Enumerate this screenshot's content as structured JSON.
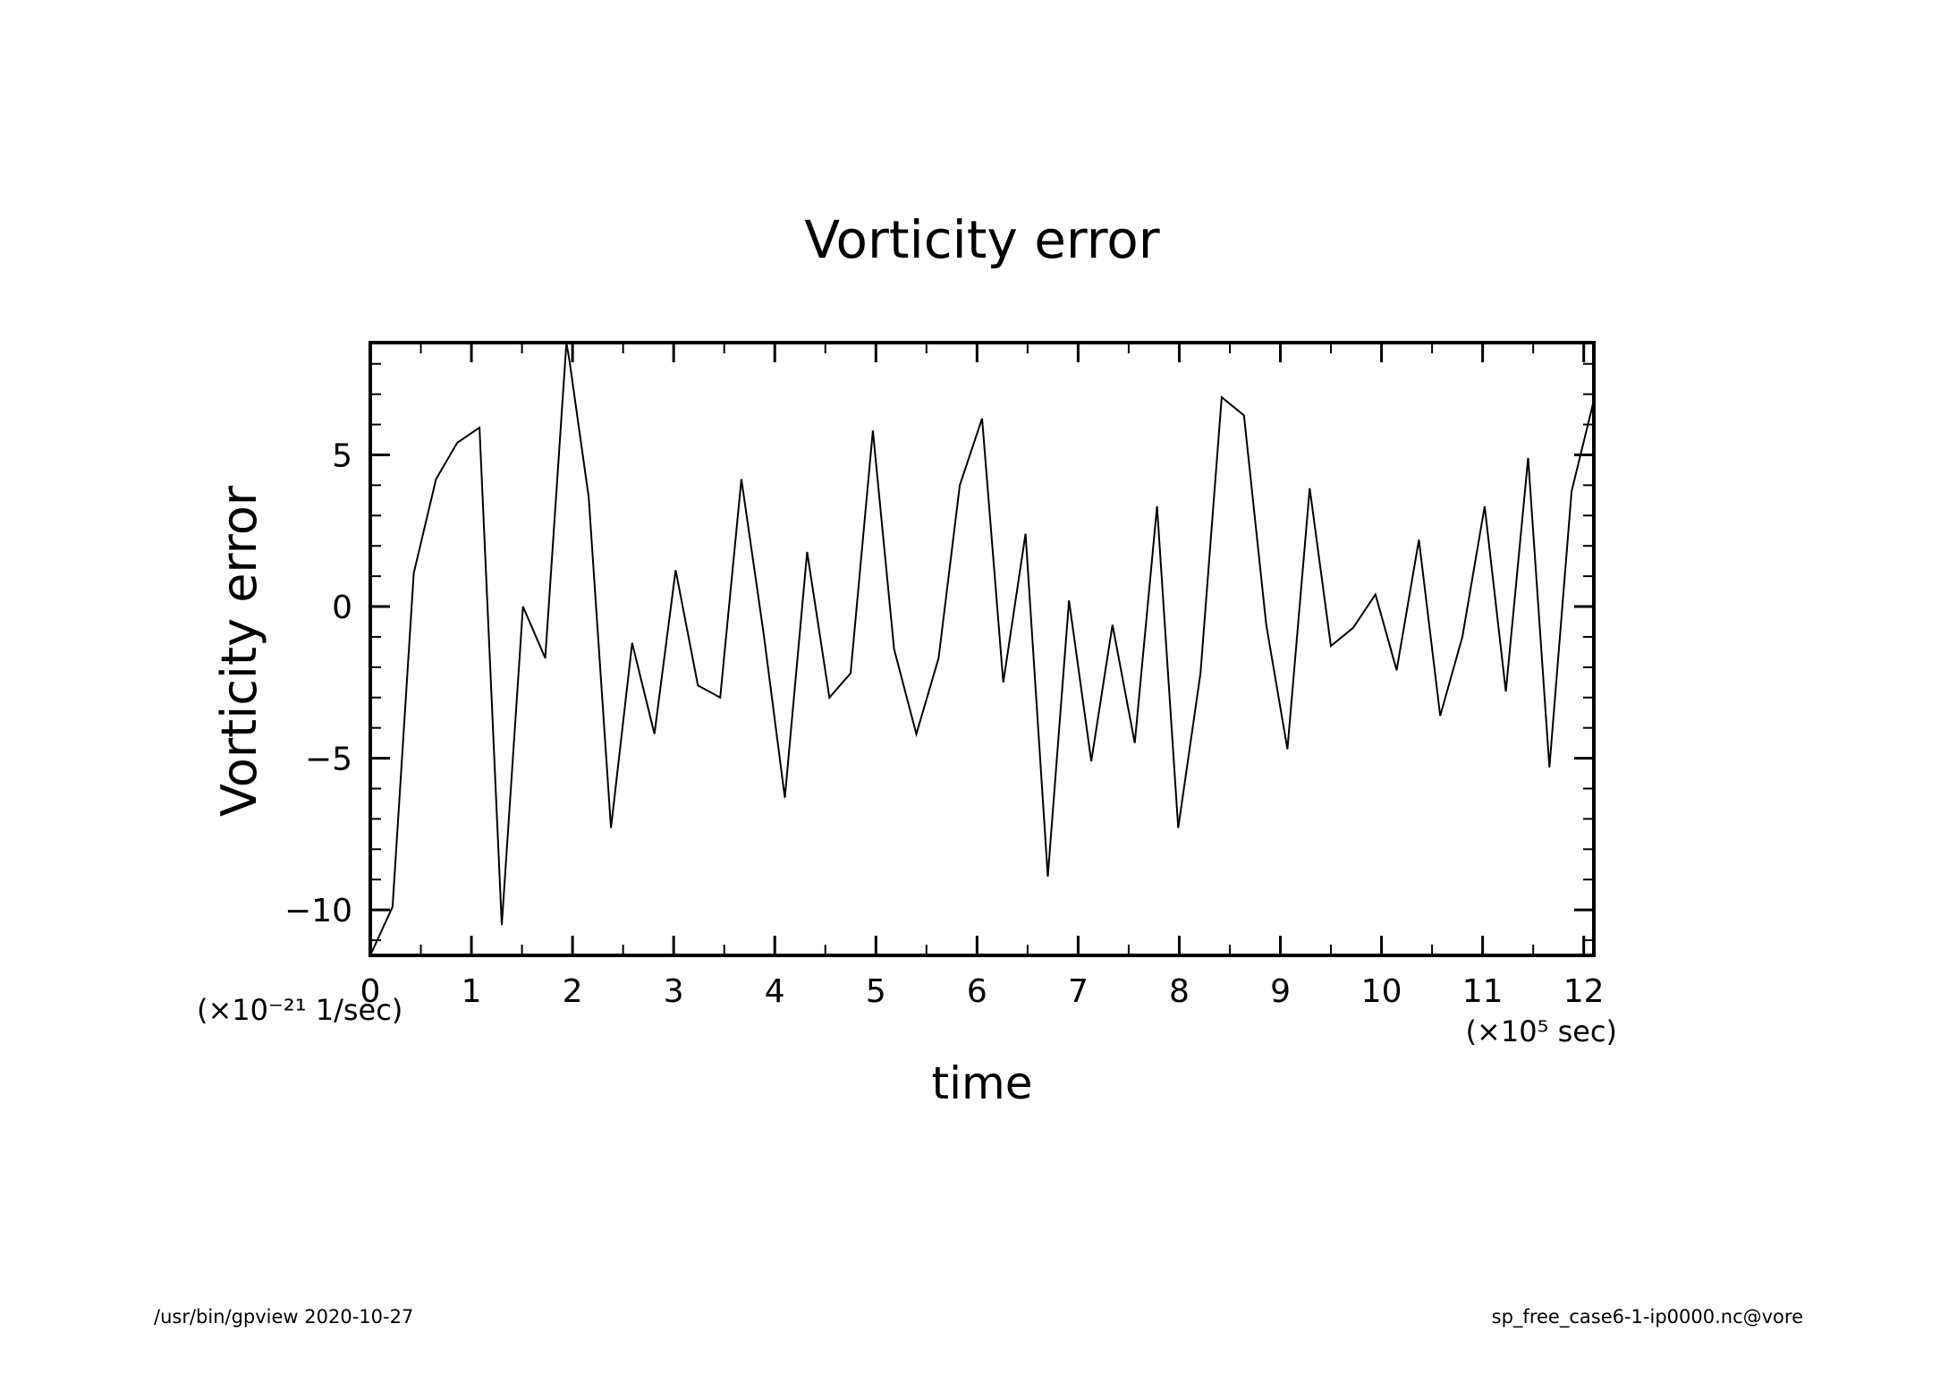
{
  "chart_data": {
    "type": "line",
    "title": "Vorticity error",
    "xlabel": "time",
    "ylabel": "Vorticity error",
    "x_unit": "(×10⁵ sec)",
    "y_unit": "(×10⁻²¹ 1/sec)",
    "xlim": [
      0,
      12.1
    ],
    "ylim": [
      -11.5,
      8.7
    ],
    "x_ticks": [
      "0",
      "1",
      "2",
      "3",
      "4",
      "5",
      "6",
      "7",
      "8",
      "9",
      "10",
      "11",
      "12"
    ],
    "y_ticks": [
      "5",
      "0",
      "−5",
      "−10"
    ],
    "y_tick_values": [
      5,
      0,
      -5,
      -10
    ],
    "grid": false,
    "series": [
      {
        "x": [
          0.0,
          0.22,
          0.43,
          0.65,
          0.86,
          1.08,
          1.3,
          1.51,
          1.73,
          1.94,
          1.97,
          2.16,
          2.38,
          2.59,
          2.81,
          3.02,
          3.24,
          3.46,
          3.67,
          3.89,
          4.1,
          4.32,
          4.54,
          4.75,
          4.97,
          5.18,
          5.4,
          5.62,
          5.83,
          6.05,
          6.26,
          6.48,
          6.7,
          6.91,
          7.13,
          7.34,
          7.56,
          7.78,
          7.99,
          8.21,
          8.42,
          8.64,
          8.86,
          9.07,
          9.29,
          9.5,
          9.72,
          9.94,
          10.15,
          10.37,
          10.58,
          10.8,
          11.02,
          11.23,
          11.45,
          11.66,
          11.88,
          12.1
        ],
        "y": [
          -11.5,
          -9.9,
          1.1,
          4.2,
          5.4,
          5.9,
          -10.5,
          0.0,
          -1.7,
          8.7,
          8.1,
          3.6,
          -7.3,
          -1.2,
          -4.2,
          1.2,
          -2.6,
          -3.0,
          4.2,
          -0.9,
          -6.3,
          1.8,
          -3.0,
          -2.2,
          5.8,
          -1.4,
          -4.2,
          -1.7,
          4.0,
          6.2,
          -2.5,
          2.4,
          -8.9,
          0.2,
          -5.1,
          -0.6,
          -4.5,
          3.3,
          -7.3,
          -2.2,
          6.9,
          6.3,
          -0.6,
          -4.7,
          3.9,
          -1.3,
          -0.7,
          0.4,
          -2.1,
          2.2,
          -3.6,
          -1.0,
          3.3,
          -2.8,
          4.9,
          -5.3,
          3.8,
          6.8
        ]
      }
    ]
  },
  "footer": {
    "left": "/usr/bin/gpview   2020-10-27",
    "right": "sp_free_case6-1-ip0000.nc@vore"
  },
  "colors": {
    "line": "#000000",
    "axis": "#000000",
    "background": "#ffffff"
  }
}
